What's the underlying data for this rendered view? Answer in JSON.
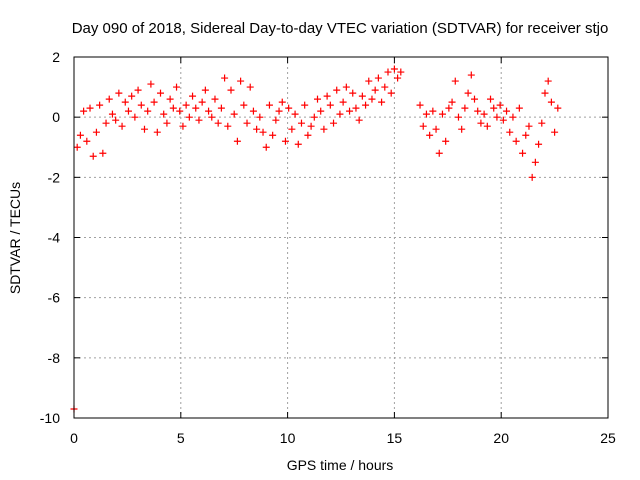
{
  "chart_data": {
    "type": "scatter",
    "title": "Day 090 of 2018, Sidereal Day-to-day VTEC variation (SDTVAR) for receiver stjo",
    "xlabel": "GPS time / hours",
    "ylabel": "SDTVAR / TECUs",
    "xlim": [
      0,
      25
    ],
    "ylim": [
      -10,
      2
    ],
    "x_ticks": [
      0,
      5,
      10,
      15,
      20,
      25
    ],
    "y_ticks": [
      -10,
      -8,
      -6,
      -4,
      -2,
      0,
      2
    ],
    "x_tick_labels": [
      "0",
      "5",
      "10",
      "15",
      "20",
      "25"
    ],
    "y_tick_labels": [
      "-10",
      "-8",
      "-6",
      "-4",
      "-2",
      "0",
      "2"
    ],
    "grid": true,
    "marker": "+",
    "marker_color": "#ff0000",
    "series": [
      {
        "name": "stjo",
        "x": [
          0.0,
          0.15,
          0.3,
          0.45,
          0.6,
          0.75,
          0.9,
          1.05,
          1.2,
          1.35,
          1.5,
          1.65,
          1.8,
          1.95,
          2.1,
          2.25,
          2.4,
          2.55,
          2.7,
          2.85,
          3.0,
          3.15,
          3.3,
          3.45,
          3.6,
          3.75,
          3.9,
          4.05,
          4.2,
          4.35,
          4.5,
          4.65,
          4.8,
          4.95,
          5.1,
          5.25,
          5.4,
          5.55,
          5.7,
          5.85,
          6.0,
          6.15,
          6.3,
          6.45,
          6.6,
          6.75,
          6.9,
          7.05,
          7.2,
          7.35,
          7.5,
          7.65,
          7.8,
          7.95,
          8.1,
          8.25,
          8.4,
          8.55,
          8.7,
          8.85,
          9.0,
          9.15,
          9.3,
          9.45,
          9.6,
          9.75,
          9.9,
          10.05,
          10.2,
          10.35,
          10.5,
          10.65,
          10.8,
          10.95,
          11.1,
          11.25,
          11.4,
          11.55,
          11.7,
          11.85,
          12.0,
          12.15,
          12.3,
          12.45,
          12.6,
          12.75,
          12.9,
          13.05,
          13.2,
          13.35,
          13.5,
          13.65,
          13.8,
          13.95,
          14.1,
          14.25,
          14.4,
          14.55,
          14.7,
          14.85,
          15.0,
          15.15,
          15.3,
          16.2,
          16.35,
          16.5,
          16.65,
          16.8,
          16.95,
          17.1,
          17.25,
          17.4,
          17.55,
          17.7,
          17.85,
          18.0,
          18.15,
          18.3,
          18.45,
          18.6,
          18.75,
          18.9,
          19.05,
          19.2,
          19.35,
          19.5,
          19.65,
          19.8,
          19.95,
          20.1,
          20.25,
          20.4,
          20.55,
          20.7,
          20.85,
          21.0,
          21.15,
          21.3,
          21.45,
          21.6,
          21.75,
          21.9,
          22.05,
          22.2,
          22.35,
          22.5,
          22.65
        ],
        "y": [
          -9.7,
          -1.0,
          -0.6,
          0.2,
          -0.8,
          0.3,
          -1.3,
          -0.5,
          0.4,
          -1.2,
          -0.2,
          0.6,
          0.1,
          -0.1,
          0.8,
          -0.3,
          0.5,
          0.2,
          0.7,
          0.0,
          0.9,
          0.4,
          -0.4,
          0.2,
          1.1,
          0.5,
          -0.5,
          0.8,
          0.1,
          -0.2,
          0.6,
          0.3,
          1.0,
          0.2,
          -0.3,
          0.4,
          0.0,
          0.7,
          0.3,
          -0.1,
          0.5,
          0.9,
          0.2,
          0.0,
          0.6,
          -0.2,
          0.3,
          1.3,
          -0.3,
          0.9,
          0.1,
          -0.8,
          1.2,
          0.4,
          -0.2,
          1.0,
          0.2,
          -0.4,
          0.0,
          -0.5,
          -1.0,
          0.4,
          -0.6,
          -0.1,
          0.2,
          0.5,
          -0.8,
          0.3,
          -0.4,
          0.1,
          -0.9,
          -0.2,
          0.4,
          -0.6,
          -0.3,
          0.0,
          0.6,
          0.2,
          -0.4,
          0.7,
          0.4,
          -0.2,
          0.9,
          0.1,
          0.5,
          1.0,
          0.2,
          0.8,
          0.3,
          -0.1,
          0.7,
          0.4,
          1.2,
          0.6,
          0.9,
          1.3,
          0.5,
          1.0,
          1.5,
          0.8,
          1.6,
          1.3,
          1.5,
          0.4,
          -0.3,
          0.1,
          -0.6,
          0.2,
          -0.4,
          -1.2,
          0.1,
          -0.8,
          0.3,
          0.5,
          1.2,
          0.0,
          -0.4,
          0.3,
          0.8,
          1.4,
          0.6,
          0.2,
          -0.2,
          0.1,
          -0.3,
          0.6,
          0.3,
          0.0,
          0.4,
          -0.1,
          0.2,
          -0.5,
          0.0,
          -0.8,
          0.3,
          -1.2,
          -0.6,
          -0.3,
          -2.0,
          -1.5,
          -0.9,
          -0.2,
          0.8,
          1.2,
          0.5,
          -0.5,
          0.3
        ]
      }
    ]
  }
}
